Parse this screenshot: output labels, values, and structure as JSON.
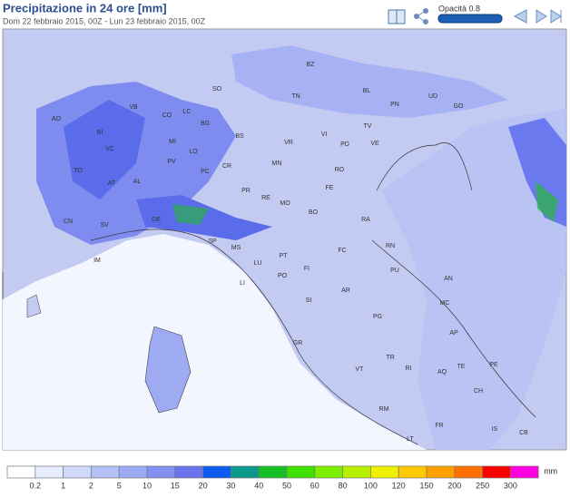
{
  "header": {
    "title": "Precipitazione in 24 ore [mm]",
    "subtitle": "Dom 22 febbraio 2015, 00Z - Lun 23 febbraio 2015, 00Z",
    "opacity_label": "Opacità 0.8"
  },
  "map": {
    "labels": [
      "BZ",
      "TN",
      "BL",
      "PN",
      "UD",
      "GO",
      "SO",
      "VB",
      "CO",
      "LC",
      "BG",
      "AO",
      "BI",
      "VC",
      "MI",
      "LO",
      "PV",
      "PC",
      "CR",
      "BS",
      "VR",
      "VI",
      "TV",
      "PD",
      "VE",
      "MN",
      "RO",
      "FE",
      "TO",
      "AT",
      "AL",
      "PR",
      "RE",
      "MO",
      "BO",
      "RA",
      "CN",
      "SV",
      "GE",
      "SP",
      "MS",
      "FC",
      "RN",
      "PU",
      "LU",
      "PT",
      "FI",
      "IM",
      "PO",
      "AN",
      "LI",
      "SI",
      "AR",
      "MC",
      "PG",
      "AP",
      "GR",
      "TR",
      "TE",
      "RI",
      "PE",
      "VT",
      "AQ",
      "CH",
      "RM",
      "FR",
      "IS",
      "CB",
      "LT"
    ]
  },
  "legend": {
    "thresholds": [
      0.2,
      1,
      2,
      5,
      10,
      15,
      20,
      30,
      40,
      50,
      60,
      80,
      100,
      120,
      150,
      200,
      250,
      300
    ],
    "unit": "mm",
    "colors": [
      "#ffffff",
      "#e8ecff",
      "#d0d8fc",
      "#b4c0f8",
      "#9caaf4",
      "#8490f0",
      "#6a72ee",
      "#0c5cf0",
      "#0a9a8c",
      "#18c028",
      "#40e000",
      "#7cf000",
      "#b8f000",
      "#f0f000",
      "#ffc800",
      "#ffa000",
      "#ff7000",
      "#ff0000",
      "#ff00e0"
    ]
  }
}
